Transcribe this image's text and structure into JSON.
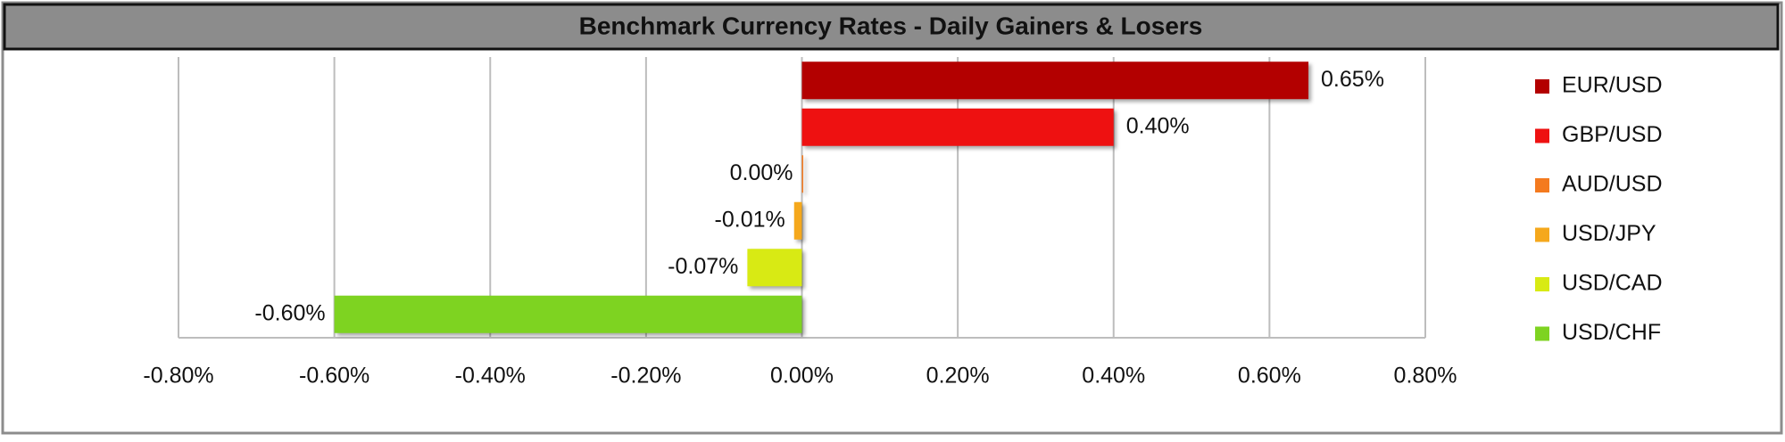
{
  "chart_data": {
    "type": "hbar",
    "title": "Benchmark Currency Rates - Daily Gainers & Losers",
    "categories": [
      "EUR/USD",
      "GBP/USD",
      "AUD/USD",
      "USD/JPY",
      "USD/CAD",
      "USD/CHF"
    ],
    "values": [
      0.65,
      0.4,
      0.0,
      -0.01,
      -0.07,
      -0.6
    ],
    "value_labels": [
      "0.65%",
      "0.40%",
      "0.00%",
      "-0.01%",
      "-0.07%",
      "-0.60%"
    ],
    "colors": [
      "#b30000",
      "#ee1111",
      "#f47a1f",
      "#f5a81c",
      "#d8ea14",
      "#7ed321"
    ],
    "xlim": [
      -0.8,
      0.8
    ],
    "xticks": [
      {
        "value": -0.8,
        "label": "-0.80%"
      },
      {
        "value": -0.6,
        "label": "-0.60%"
      },
      {
        "value": -0.4,
        "label": "-0.40%"
      },
      {
        "value": -0.2,
        "label": "-0.20%"
      },
      {
        "value": 0,
        "label": "0.00%"
      },
      {
        "value": 0.2,
        "label": "0.20%"
      },
      {
        "value": 0.4,
        "label": "0.40%"
      },
      {
        "value": 0.6,
        "label": "0.60%"
      },
      {
        "value": 0.8,
        "label": "0.80%"
      }
    ],
    "grid": true,
    "legend": "right"
  }
}
